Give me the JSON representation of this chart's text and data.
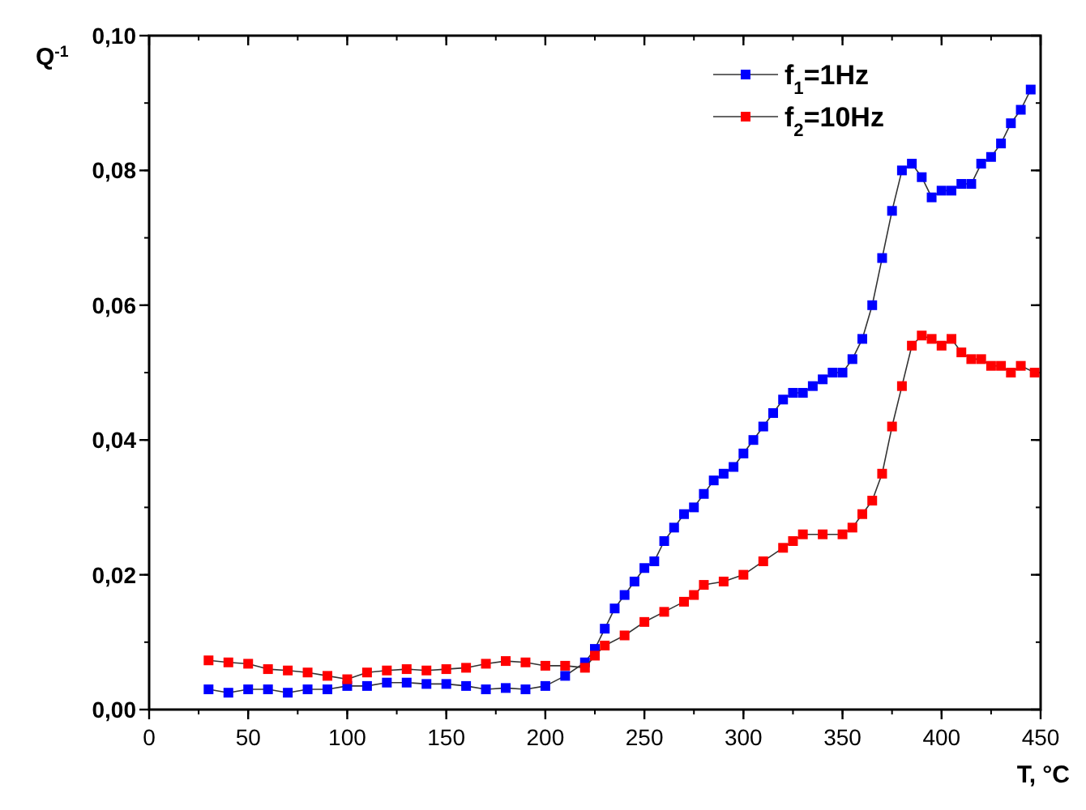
{
  "chart_data": {
    "type": "line",
    "xlabel": "T, °C",
    "ylabel": "Q$^{-1}$",
    "xlim": [
      0,
      450
    ],
    "ylim": [
      0,
      0.1
    ],
    "xticks": [
      0,
      50,
      100,
      150,
      200,
      250,
      300,
      350,
      400,
      450
    ],
    "yticks": [
      {
        "value": 0,
        "label": "0,00"
      },
      {
        "value": 0.02,
        "label": "0,02"
      },
      {
        "value": 0.04,
        "label": "0,04"
      },
      {
        "value": 0.06,
        "label": "0,06"
      },
      {
        "value": 0.08,
        "label": "0,08"
      },
      {
        "value": 0.1,
        "label": "0,10"
      }
    ],
    "legend": "top right",
    "marker": "square",
    "line_style": "solid",
    "grid": false,
    "series": [
      {
        "name": "f$_{1}$=1Hz",
        "color": "#0000ff",
        "x": [
          30,
          40,
          50,
          60,
          70,
          80,
          90,
          100,
          110,
          120,
          130,
          140,
          150,
          160,
          170,
          180,
          190,
          200,
          210,
          220,
          225,
          230,
          235,
          240,
          245,
          250,
          255,
          260,
          265,
          270,
          275,
          280,
          285,
          290,
          295,
          300,
          305,
          310,
          315,
          320,
          325,
          330,
          335,
          340,
          345,
          350,
          355,
          360,
          365,
          370,
          375,
          380,
          385,
          390,
          395,
          400,
          405,
          410,
          415,
          420,
          425,
          430,
          435,
          440,
          445
        ],
        "values": [
          0.003,
          0.0025,
          0.003,
          0.003,
          0.0025,
          0.003,
          0.003,
          0.0035,
          0.0035,
          0.004,
          0.004,
          0.0038,
          0.0038,
          0.0035,
          0.003,
          0.0032,
          0.003,
          0.0035,
          0.005,
          0.007,
          0.009,
          0.012,
          0.015,
          0.017,
          0.019,
          0.021,
          0.022,
          0.025,
          0.027,
          0.029,
          0.03,
          0.032,
          0.034,
          0.035,
          0.036,
          0.038,
          0.04,
          0.042,
          0.044,
          0.046,
          0.047,
          0.047,
          0.048,
          0.049,
          0.05,
          0.05,
          0.052,
          0.055,
          0.06,
          0.067,
          0.074,
          0.08,
          0.081,
          0.079,
          0.076,
          0.077,
          0.077,
          0.078,
          0.078,
          0.081,
          0.082,
          0.084,
          0.087,
          0.089,
          0.092
        ]
      },
      {
        "name": "f$_{2}$=10Hz",
        "color": "#ff0000",
        "x": [
          30,
          40,
          50,
          60,
          70,
          80,
          90,
          100,
          110,
          120,
          130,
          140,
          150,
          160,
          170,
          180,
          190,
          200,
          210,
          220,
          225,
          230,
          240,
          250,
          260,
          270,
          275,
          280,
          290,
          300,
          310,
          320,
          325,
          330,
          340,
          350,
          355,
          360,
          365,
          370,
          375,
          380,
          385,
          390,
          395,
          400,
          405,
          410,
          415,
          420,
          425,
          430,
          435,
          440,
          447
        ],
        "values": [
          0.0073,
          0.007,
          0.0068,
          0.006,
          0.0058,
          0.0055,
          0.005,
          0.0045,
          0.0055,
          0.0058,
          0.006,
          0.0058,
          0.006,
          0.0062,
          0.0068,
          0.0072,
          0.007,
          0.0065,
          0.0065,
          0.0062,
          0.008,
          0.0095,
          0.011,
          0.013,
          0.0145,
          0.016,
          0.017,
          0.0185,
          0.019,
          0.02,
          0.022,
          0.024,
          0.025,
          0.026,
          0.026,
          0.026,
          0.027,
          0.029,
          0.031,
          0.035,
          0.042,
          0.048,
          0.054,
          0.0555,
          0.055,
          0.054,
          0.055,
          0.053,
          0.052,
          0.052,
          0.051,
          0.051,
          0.05,
          0.051,
          0.05
        ]
      }
    ]
  }
}
